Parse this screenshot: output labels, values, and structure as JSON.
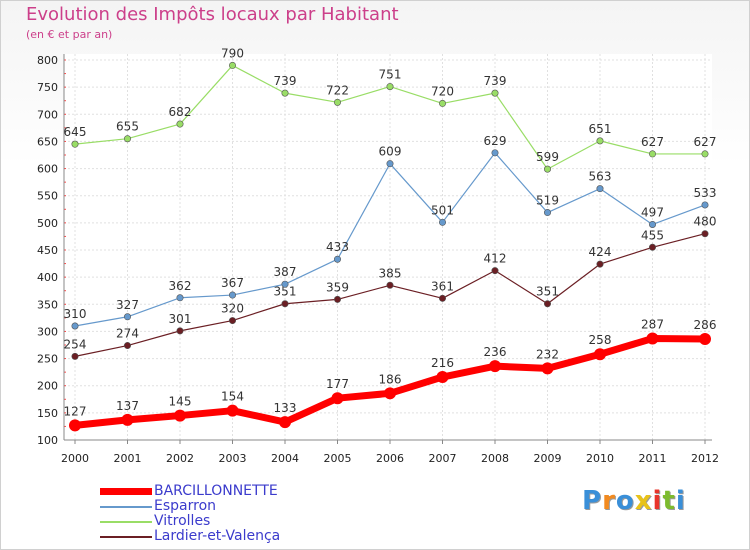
{
  "chart_data": {
    "type": "line",
    "title": "Evolution des Impôts locaux par Habitant",
    "subtitle": "(en € et par an)",
    "xlabel": "",
    "ylabel": "",
    "x": [
      "2000",
      "2001",
      "2002",
      "2003",
      "2004",
      "2005",
      "2006",
      "2007",
      "2008",
      "2009",
      "2010",
      "2011",
      "2012"
    ],
    "ylim": [
      100,
      800
    ],
    "yticks": [
      "100",
      "150",
      "200",
      "250",
      "300",
      "350",
      "400",
      "450",
      "500",
      "550",
      "600",
      "650",
      "700",
      "750",
      "800"
    ],
    "grid": true,
    "legend_position": "bottom-left",
    "series": [
      {
        "name": "BARCILLONNETTE",
        "color": "#ff0000",
        "values": [
          127,
          137,
          145,
          154,
          133,
          177,
          186,
          216,
          236,
          232,
          258,
          287,
          286
        ]
      },
      {
        "name": "Esparron",
        "color": "#6699cc",
        "values": [
          310,
          327,
          362,
          367,
          387,
          433,
          609,
          501,
          629,
          519,
          563,
          497,
          533
        ]
      },
      {
        "name": "Vitrolles",
        "color": "#99dd66",
        "values": [
          645,
          655,
          682,
          790,
          739,
          722,
          751,
          720,
          739,
          599,
          651,
          627,
          627
        ]
      },
      {
        "name": "Lardier-et-Valença",
        "color": "#6b1f24",
        "values": [
          254,
          274,
          301,
          320,
          351,
          359,
          385,
          361,
          412,
          351,
          424,
          455,
          480
        ]
      }
    ]
  },
  "logo": {
    "letters": [
      "P",
      "r",
      "o",
      "x",
      "i",
      "t",
      "i"
    ],
    "colors": [
      "#3a8fd8",
      "#f28a1f",
      "#3a8fd8",
      "#e8c21a",
      "#e8352b",
      "#7dbb2e",
      "#3a8fd8"
    ]
  }
}
